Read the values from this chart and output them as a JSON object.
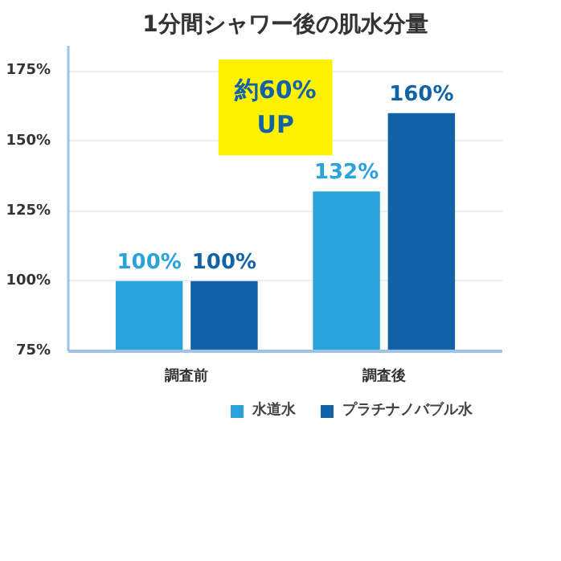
{
  "chart_data": {
    "type": "bar",
    "title": "1分間シャワー後の肌水分量",
    "categories": [
      "調査前",
      "調査後"
    ],
    "series": [
      {
        "name": "水道水",
        "color": "#2aa3db",
        "values": [
          100,
          132
        ],
        "value_labels": [
          "100%",
          "132%"
        ]
      },
      {
        "name": "プラチナノバブル水",
        "color": "#1262a8",
        "values": [
          100,
          160
        ],
        "value_labels": [
          "100%",
          "160%"
        ]
      }
    ],
    "ylim": [
      75,
      184
    ],
    "yticks": [
      {
        "value": 75,
        "label": "75%"
      },
      {
        "value": 100,
        "label": "100%"
      },
      {
        "value": 125,
        "label": "125%"
      },
      {
        "value": 150,
        "label": "150%"
      },
      {
        "value": 175,
        "label": "175%"
      }
    ],
    "grid": "y",
    "legend": "bottom right",
    "annotations": [
      "約60%\nUP"
    ]
  }
}
